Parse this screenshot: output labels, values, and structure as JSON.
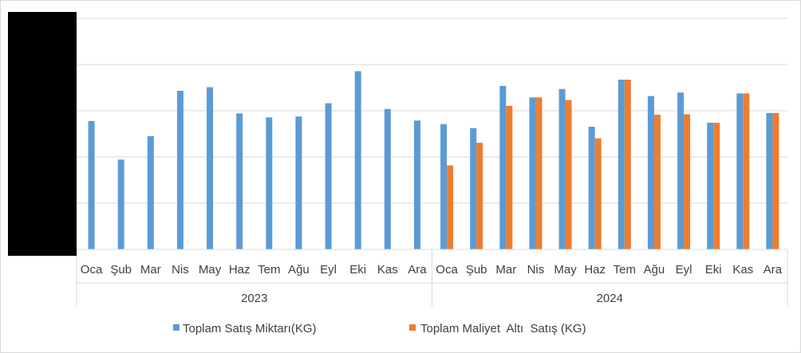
{
  "chart_data": {
    "type": "bar",
    "title": "",
    "xlabel": "",
    "ylabel": "",
    "grid": true,
    "legend_position": "bottom",
    "y_ticks_visible": false,
    "groups": [
      {
        "label": "2023",
        "categories": [
          "Oca",
          "Şub",
          "Mar",
          "Nis",
          "May",
          "Haz",
          "Tem",
          "Ağu",
          "Eyl",
          "Eki",
          "Kas",
          "Ara"
        ]
      },
      {
        "label": "2024",
        "categories": [
          "Oca",
          "Şub",
          "Mar",
          "Nis",
          "May",
          "Haz",
          "Tem",
          "Ağu",
          "Eyl",
          "Eki",
          "Kas",
          "Ara"
        ]
      }
    ],
    "ylim": [
      0,
      5.2
    ],
    "series": [
      {
        "name": "Toplam Satış Miktarı(KG)",
        "color": "#5b9bd5",
        "values": [
          2.89,
          2.02,
          2.55,
          3.57,
          3.65,
          3.06,
          2.97,
          2.99,
          3.29,
          4.01,
          3.16,
          2.9,
          2.82,
          2.73,
          3.68,
          3.42,
          3.61,
          2.76,
          3.82,
          3.45,
          3.53,
          2.85,
          3.51,
          3.07
        ]
      },
      {
        "name": "Toplam Maliyet  Altı  Satış (KG)",
        "color": "#ed7d31",
        "values": [
          null,
          null,
          null,
          null,
          null,
          null,
          null,
          null,
          null,
          null,
          null,
          null,
          1.89,
          2.4,
          3.23,
          3.42,
          3.36,
          2.5,
          3.82,
          3.03,
          3.04,
          2.85,
          3.51,
          3.07
        ]
      }
    ]
  }
}
